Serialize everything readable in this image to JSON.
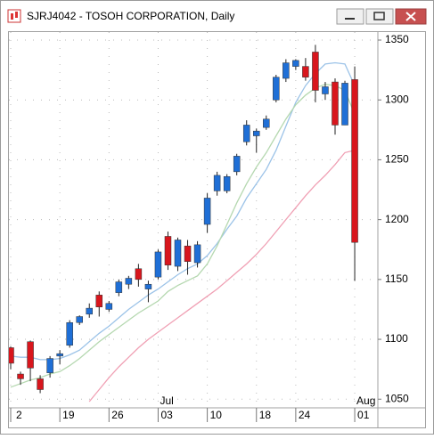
{
  "chart_data": {
    "type": "candlestick",
    "title": "SJRJ4042 - TOSOH CORPORATION, Daily",
    "categories": [
      "2",
      null,
      null,
      null,
      null,
      "19",
      null,
      null,
      null,
      null,
      "26",
      null,
      null,
      null,
      null,
      "03",
      null,
      null,
      null,
      null,
      "10",
      null,
      null,
      null,
      null,
      "18",
      null,
      null,
      null,
      "24",
      null,
      null,
      null,
      null,
      null,
      "01"
    ],
    "month_categories": [
      null,
      null,
      null,
      null,
      null,
      null,
      null,
      null,
      null,
      null,
      null,
      null,
      null,
      null,
      null,
      "Jul",
      null,
      null,
      null,
      null,
      null,
      null,
      null,
      null,
      null,
      null,
      null,
      null,
      null,
      null,
      null,
      null,
      null,
      null,
      null,
      "Aug"
    ],
    "open": [
      1093,
      1071,
      1098,
      1067,
      1072,
      1086,
      1095,
      1114,
      1121,
      1137,
      1125,
      1139,
      1146,
      1159,
      1142,
      1152,
      1186,
      1161,
      1178,
      1164,
      1196,
      1224,
      1224,
      1240,
      1265,
      1270,
      1277,
      1300,
      1318,
      1328,
      1328,
      1340,
      1305,
      1315,
      1279,
      1317
    ],
    "high": [
      1094,
      1073,
      1099,
      1070,
      1086,
      1091,
      1116,
      1120,
      1130,
      1140,
      1132,
      1150,
      1153,
      1163,
      1149,
      1175,
      1190,
      1185,
      1183,
      1182,
      1222,
      1240,
      1238,
      1255,
      1283,
      1276,
      1287,
      1321,
      1334,
      1334,
      1335,
      1346,
      1315,
      1318,
      1316,
      1328
    ],
    "low": [
      1075,
      1062,
      1065,
      1055,
      1068,
      1079,
      1093,
      1112,
      1118,
      1119,
      1123,
      1136,
      1142,
      1144,
      1131,
      1150,
      1158,
      1157,
      1154,
      1160,
      1189,
      1220,
      1222,
      1237,
      1262,
      1256,
      1275,
      1298,
      1315,
      1325,
      1316,
      1298,
      1300,
      1271,
      1279,
      1149
    ],
    "close": [
      1080,
      1067,
      1076,
      1058,
      1084,
      1088,
      1114,
      1119,
      1126,
      1127,
      1130,
      1148,
      1151,
      1150,
      1146,
      1173,
      1162,
      1183,
      1165,
      1179,
      1218,
      1237,
      1236,
      1253,
      1279,
      1274,
      1284,
      1319,
      1331,
      1333,
      1319,
      1308,
      1311,
      1279,
      1314,
      1181
    ],
    "up_color": "#1f6fd6",
    "down_color": "#d8161d",
    "moving_averages": [
      {
        "color": "#9cc3e8",
        "values": [
          1086,
          1085,
          1085,
          1083,
          1083,
          1084,
          1087,
          1091,
          1098,
          1105,
          1111,
          1118,
          1125,
          1131,
          1137,
          1142,
          1148,
          1154,
          1159,
          1163,
          1170,
          1180,
          1192,
          1203,
          1218,
          1230,
          1242,
          1258,
          1278,
          1298,
          1312,
          1322,
          1330,
          1331,
          1330,
          1312
        ]
      },
      {
        "color": "#b5d8b0",
        "values": [
          1060,
          1063,
          1066,
          1068,
          1071,
          1073,
          1078,
          1084,
          1091,
          1098,
          1104,
          1110,
          1116,
          1122,
          1127,
          1132,
          1140,
          1145,
          1149,
          1153,
          1163,
          1178,
          1196,
          1214,
          1230,
          1244,
          1256,
          1270,
          1284,
          1296,
          1304,
          1310,
          1313,
          1312,
          1308,
          1288
        ]
      },
      {
        "color": "#f0a0b4",
        "values": [
          null,
          null,
          null,
          null,
          null,
          null,
          null,
          null,
          1048,
          1058,
          1068,
          1077,
          1085,
          1093,
          1100,
          1106,
          1112,
          1118,
          1124,
          1130,
          1136,
          1142,
          1149,
          1156,
          1163,
          1171,
          1180,
          1190,
          1200,
          1210,
          1220,
          1229,
          1237,
          1246,
          1256,
          1258
        ]
      }
    ],
    "ylim": [
      1043.5,
      1356.7
    ],
    "yticks": [
      1050,
      1100,
      1150,
      1200,
      1250,
      1300,
      1350
    ],
    "grid": true
  }
}
